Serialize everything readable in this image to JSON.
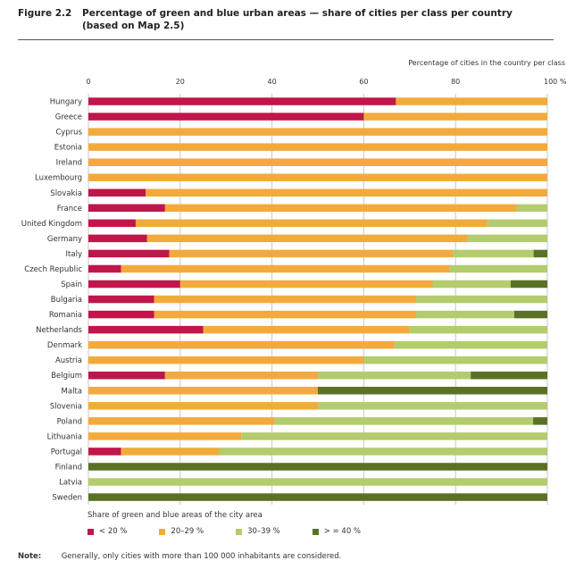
{
  "figure": {
    "label": "Figure 2.2",
    "title": "Percentage of green and blue urban areas — share of cities per class per country (based on Map 2.5)"
  },
  "chart_data": {
    "type": "bar",
    "orientation": "horizontal",
    "stacked": true,
    "axis_title": "Percentage of cities in the country per class",
    "xlim": [
      0,
      100
    ],
    "ticks": [
      "0",
      "20",
      "40",
      "60",
      "80",
      "100 %"
    ],
    "tick_values": [
      0,
      20,
      40,
      60,
      80,
      100
    ],
    "categories": [
      "Hungary",
      "Greece",
      "Cyprus",
      "Estonia",
      "Ireland",
      "Luxembourg",
      "Slovakia",
      "France",
      "United Kingdom",
      "Germany",
      "Italy",
      "Czech Republic",
      "Spain",
      "Bulgaria",
      "Romania",
      "Netherlands",
      "Denmark",
      "Austria",
      "Belgium",
      "Malta",
      "Slovenia",
      "Poland",
      "Lithuania",
      "Portugal",
      "Finland",
      "Latvia",
      "Sweden"
    ],
    "series": [
      {
        "name": "< 20 %",
        "color": "#c0164a",
        "values": [
          67,
          60,
          0,
          0,
          0,
          0,
          12.5,
          16.7,
          10.3,
          12.8,
          17.6,
          7.1,
          20,
          14.3,
          14.3,
          25,
          0,
          0,
          16.7,
          0,
          0,
          0,
          0,
          7.1,
          0,
          0,
          0
        ]
      },
      {
        "name": "20–29 %",
        "color": "#f3aa3c",
        "values": [
          33,
          40,
          100,
          100,
          100,
          100,
          87.5,
          76.6,
          76.7,
          69.8,
          61.8,
          71.5,
          55,
          57.1,
          57.1,
          45,
          66.7,
          60,
          33.3,
          50,
          50,
          40.6,
          33.3,
          21.4,
          0,
          0,
          0
        ]
      },
      {
        "name": "30–39 %",
        "color": "#b3cc6d",
        "values": [
          0,
          0,
          0,
          0,
          0,
          0,
          0,
          6.7,
          13,
          17.4,
          17.6,
          21.4,
          17,
          28.6,
          21.4,
          30,
          33.3,
          40,
          33.3,
          0,
          50,
          56.3,
          66.7,
          71.5,
          0,
          100,
          0
        ]
      },
      {
        "name": "> = 40 %",
        "color": "#5a7225",
        "values": [
          0,
          0,
          0,
          0,
          0,
          0,
          0,
          0,
          0,
          0,
          3,
          0,
          8,
          0,
          7.2,
          0,
          0,
          0,
          16.7,
          50,
          0,
          3.1,
          0,
          0,
          100,
          0,
          100
        ]
      }
    ]
  },
  "legend": {
    "title": "Share of green and blue areas of the city area"
  },
  "note": {
    "label": "Note:",
    "text": "Generally, only cities with more than 100 000 inhabitants are considered."
  }
}
